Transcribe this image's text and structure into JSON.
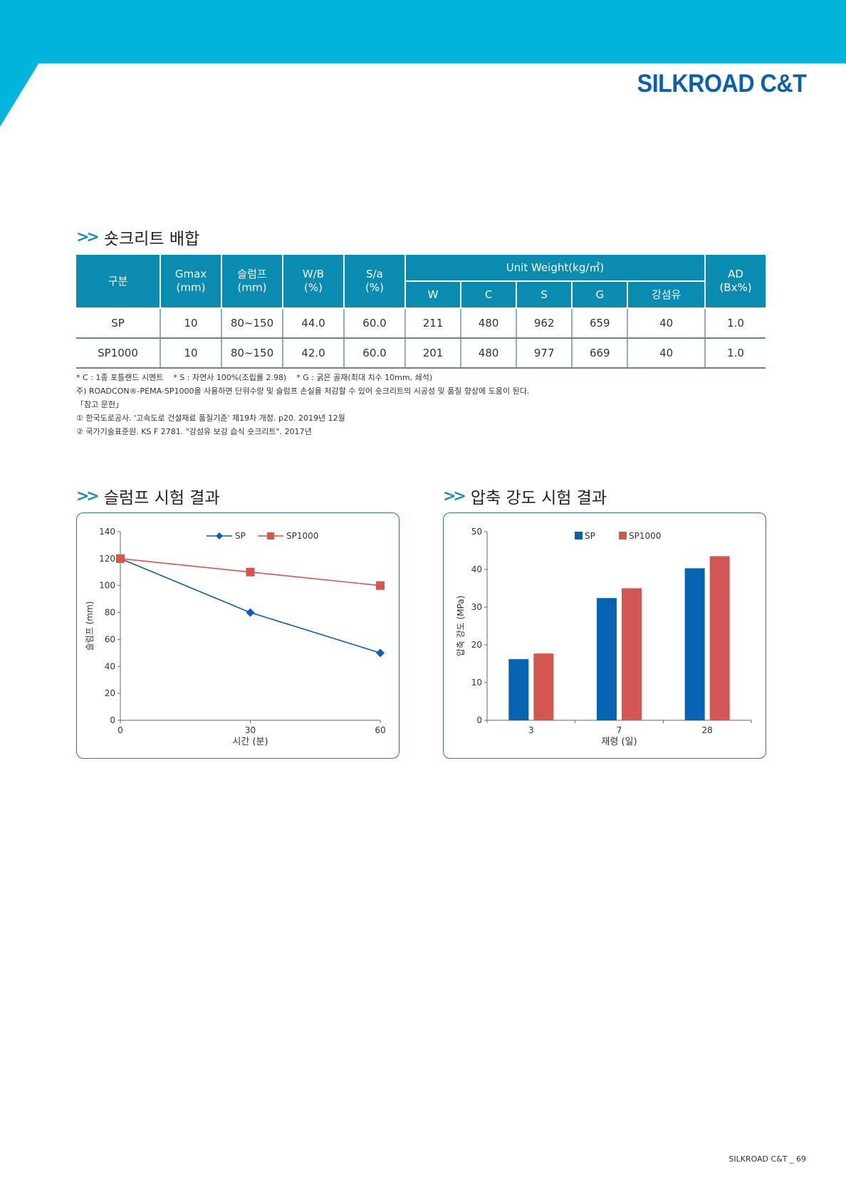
{
  "header": {
    "brand": "SILKROAD C&T"
  },
  "mix_section": {
    "title": "숏크리트 배합",
    "table": {
      "headers": {
        "category": "구분",
        "gmax": [
          "Gmax",
          "(mm)"
        ],
        "slump": [
          "슬럼프",
          "(mm)"
        ],
        "wb": [
          "W/B",
          "(%)"
        ],
        "sa": [
          "S/a",
          "(%)"
        ],
        "unit_weight": "Unit Weight(kg/㎥)",
        "unit_weight_sub": [
          "W",
          "C",
          "S",
          "G",
          "강섬유"
        ],
        "ad": [
          "AD",
          "(Bx%)"
        ]
      },
      "rows": [
        {
          "name": "SP",
          "gmax": "10",
          "slump": "80~150",
          "wb": "44.0",
          "sa": "60.0",
          "w": "211",
          "c": "480",
          "s": "962",
          "g": "659",
          "fiber": "40",
          "ad": "1.0"
        },
        {
          "name": "SP1000",
          "gmax": "10",
          "slump": "80~150",
          "wb": "42.0",
          "sa": "60.0",
          "w": "201",
          "c": "480",
          "s": "977",
          "g": "669",
          "fiber": "40",
          "ad": "1.0"
        }
      ]
    },
    "notes": [
      "* C : 1종 포틀랜드 시멘트    * S : 자연사 100%(조립률 2.98)    * G : 굵은 골재(최대 치수 10mm, 쇄석)",
      "주) ROADCON®-PEMA-SP1000을 사용하면 단위수량 및 슬럼프 손실을 저감할 수 있어 숏크리트의 시공성 및 품질 향상에 도움이 된다.",
      "「참고 문헌」",
      "① 한국도로공사. '고속도로 건설재료 품질기준' 제19차 개정. p20. 2019년 12월",
      "② 국가기술표준원. KS F 2781. \"강섬유 보강 습식 숏크리트\". 2017년"
    ]
  },
  "slump_section": {
    "title": "슬럼프 시험 결과"
  },
  "strength_section": {
    "title": "압축 강도 시험 결과"
  },
  "chart_data": [
    {
      "type": "line",
      "title": "슬럼프 시험 결과",
      "xlabel": "시간 (분)",
      "ylabel": "슬럼프 (mm)",
      "x": [
        0,
        30,
        60
      ],
      "ylim": [
        0,
        140
      ],
      "yticks": [
        0,
        20,
        40,
        60,
        80,
        100,
        120,
        140
      ],
      "series": [
        {
          "name": "SP",
          "values": [
            120,
            80,
            50
          ],
          "color": "#0a5fae",
          "marker": "diamond"
        },
        {
          "name": "SP1000",
          "values": [
            120,
            110,
            100
          ],
          "color": "#d9534f",
          "marker": "square"
        }
      ],
      "legend_position": "top",
      "grid": false
    },
    {
      "type": "bar",
      "title": "압축 강도 시험 결과",
      "xlabel": "재령 (일)",
      "ylabel": "압축 강도 (MPa)",
      "categories": [
        "3",
        "7",
        "28"
      ],
      "ylim": [
        0,
        50
      ],
      "yticks": [
        0,
        10,
        20,
        30,
        40,
        50
      ],
      "series": [
        {
          "name": "SP",
          "values": [
            16.2,
            32.4,
            40.3
          ],
          "color": "#0563b1"
        },
        {
          "name": "SP1000",
          "values": [
            17.7,
            35.0,
            43.5
          ],
          "color": "#d25752"
        }
      ],
      "legend_position": "top",
      "grid": false
    }
  ],
  "footer": {
    "page_label": "SILKROAD C&T _ 69"
  }
}
